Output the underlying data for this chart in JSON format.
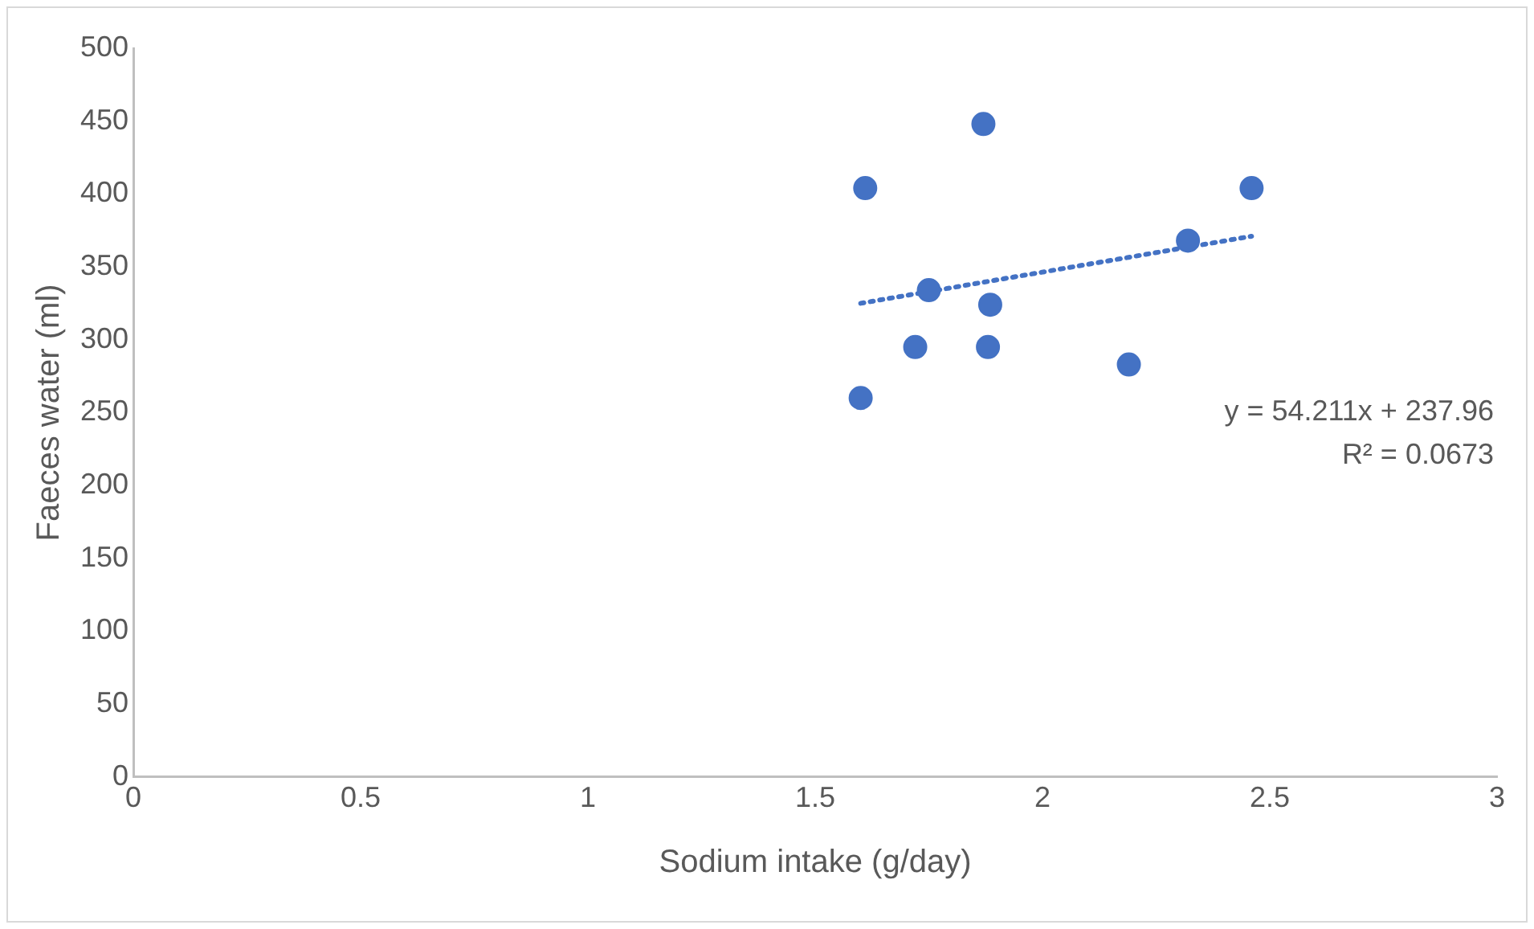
{
  "chart_data": {
    "type": "scatter",
    "xlabel": "Sodium intake (g/day)",
    "ylabel": "Faeces water (ml)",
    "xlim": [
      0,
      3
    ],
    "xticks": [
      0,
      0.5,
      1,
      1.5,
      2,
      2.5,
      3
    ],
    "ylim": [
      0,
      500
    ],
    "yticks": [
      0,
      50,
      100,
      150,
      200,
      250,
      300,
      350,
      400,
      450,
      500
    ],
    "grid": false,
    "legend": false,
    "marker": "circle",
    "series": [
      {
        "color": "#4472c4",
        "x": [
          1.6,
          1.61,
          1.87,
          1.75,
          1.72,
          1.885,
          1.88,
          2.19,
          2.32,
          2.46
        ],
        "values": [
          260,
          404,
          448,
          334,
          295,
          324,
          295,
          283,
          368,
          404
        ]
      },
      {
        "type": "line",
        "color": "#4472c4",
        "line_style": "dotted",
        "marker": "none",
        "x": [
          1.6,
          2.46
        ],
        "values": [
          325,
          371
        ]
      }
    ],
    "annotations": [
      "y = 54.211x + 237.96",
      "R² = 0.0673"
    ]
  }
}
